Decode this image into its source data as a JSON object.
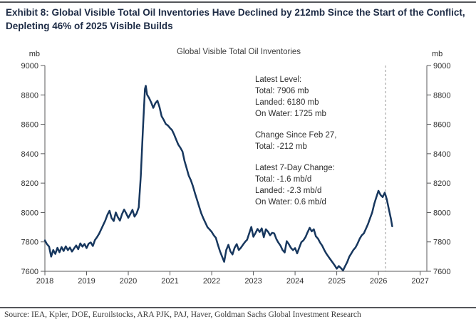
{
  "header": {
    "title": "Exhibit 8: Global Visible Total Oil Inventories Have Declined by 212mb Since the Start of the Conflict, Depleting 46% of 2025 Visible Builds"
  },
  "footer": {
    "source": "Source: IEA, Kpler, DOE, Euroilstocks, ARA PJK, PAJ, Haver, Goldman Sachs Global Investment Research"
  },
  "annotation": {
    "groups": [
      [
        "Latest Level:",
        "Total: 7906 mb",
        "Landed: 6180 mb",
        "On Water: 1725 mb"
      ],
      [
        "Change Since Feb 27,",
        "Total: -212 mb"
      ],
      [
        "Latest 7-Day Change:",
        "Total: -1.6 mb/d",
        "Landed: -2.3 mb/d",
        "On Water: 0.6 mb/d"
      ]
    ]
  },
  "chart_data": {
    "type": "line",
    "title": "Global Visible Total Oil Inventories",
    "unit_label": "mb",
    "xlabel": "",
    "ylabel": "mb",
    "xlim": [
      2018,
      2027.16
    ],
    "ylim": [
      7600,
      9000
    ],
    "x_ticks": [
      2018,
      2019,
      2020,
      2021,
      2022,
      2023,
      2024,
      2025,
      2026,
      2027
    ],
    "y_ticks": [
      7600,
      7800,
      8000,
      8200,
      8400,
      8600,
      8800,
      9000
    ],
    "grid": false,
    "legend": "none",
    "marker_line_x": 2026.17,
    "axis_color": "#58595b",
    "marker_line_color": "#a8a8a8",
    "series": [
      {
        "name": "Global Visible Total Oil Inventories",
        "color": "#17375e",
        "points": [
          [
            2018.0,
            7810
          ],
          [
            2018.05,
            7785
          ],
          [
            2018.1,
            7768
          ],
          [
            2018.15,
            7700
          ],
          [
            2018.2,
            7745
          ],
          [
            2018.25,
            7718
          ],
          [
            2018.3,
            7760
          ],
          [
            2018.35,
            7730
          ],
          [
            2018.4,
            7765
          ],
          [
            2018.45,
            7738
          ],
          [
            2018.5,
            7770
          ],
          [
            2018.55,
            7744
          ],
          [
            2018.6,
            7762
          ],
          [
            2018.65,
            7734
          ],
          [
            2018.7,
            7756
          ],
          [
            2018.75,
            7776
          ],
          [
            2018.8,
            7750
          ],
          [
            2018.85,
            7790
          ],
          [
            2018.9,
            7768
          ],
          [
            2018.95,
            7786
          ],
          [
            2019.0,
            7758
          ],
          [
            2019.05,
            7788
          ],
          [
            2019.1,
            7796
          ],
          [
            2019.15,
            7772
          ],
          [
            2019.2,
            7812
          ],
          [
            2019.25,
            7832
          ],
          [
            2019.3,
            7856
          ],
          [
            2019.35,
            7886
          ],
          [
            2019.4,
            7916
          ],
          [
            2019.45,
            7946
          ],
          [
            2019.5,
            7985
          ],
          [
            2019.55,
            8012
          ],
          [
            2019.6,
            7962
          ],
          [
            2019.65,
            7942
          ],
          [
            2019.7,
            8000
          ],
          [
            2019.75,
            7968
          ],
          [
            2019.8,
            7945
          ],
          [
            2019.85,
            7990
          ],
          [
            2019.9,
            8020
          ],
          [
            2019.95,
            7994
          ],
          [
            2020.0,
            7964
          ],
          [
            2020.05,
            7990
          ],
          [
            2020.1,
            8018
          ],
          [
            2020.15,
            7972
          ],
          [
            2020.2,
            7994
          ],
          [
            2020.25,
            8035
          ],
          [
            2020.3,
            8250
          ],
          [
            2020.35,
            8560
          ],
          [
            2020.4,
            8840
          ],
          [
            2020.42,
            8862
          ],
          [
            2020.45,
            8802
          ],
          [
            2020.5,
            8778
          ],
          [
            2020.55,
            8748
          ],
          [
            2020.6,
            8712
          ],
          [
            2020.65,
            8744
          ],
          [
            2020.7,
            8760
          ],
          [
            2020.75,
            8716
          ],
          [
            2020.8,
            8655
          ],
          [
            2020.85,
            8630
          ],
          [
            2020.9,
            8602
          ],
          [
            2020.95,
            8592
          ],
          [
            2021.0,
            8575
          ],
          [
            2021.05,
            8560
          ],
          [
            2021.1,
            8530
          ],
          [
            2021.15,
            8495
          ],
          [
            2021.2,
            8462
          ],
          [
            2021.25,
            8440
          ],
          [
            2021.3,
            8415
          ],
          [
            2021.35,
            8350
          ],
          [
            2021.4,
            8300
          ],
          [
            2021.45,
            8250
          ],
          [
            2021.5,
            8220
          ],
          [
            2021.55,
            8180
          ],
          [
            2021.6,
            8130
          ],
          [
            2021.65,
            8085
          ],
          [
            2021.7,
            8040
          ],
          [
            2021.75,
            7995
          ],
          [
            2021.8,
            7960
          ],
          [
            2021.85,
            7930
          ],
          [
            2021.9,
            7900
          ],
          [
            2021.95,
            7885
          ],
          [
            2022.0,
            7868
          ],
          [
            2022.05,
            7845
          ],
          [
            2022.1,
            7828
          ],
          [
            2022.15,
            7780
          ],
          [
            2022.2,
            7735
          ],
          [
            2022.25,
            7700
          ],
          [
            2022.3,
            7665
          ],
          [
            2022.35,
            7745
          ],
          [
            2022.4,
            7780
          ],
          [
            2022.45,
            7735
          ],
          [
            2022.5,
            7715
          ],
          [
            2022.55,
            7760
          ],
          [
            2022.6,
            7785
          ],
          [
            2022.65,
            7745
          ],
          [
            2022.7,
            7760
          ],
          [
            2022.75,
            7780
          ],
          [
            2022.8,
            7800
          ],
          [
            2022.85,
            7815
          ],
          [
            2022.9,
            7858
          ],
          [
            2022.95,
            7902
          ],
          [
            2023.0,
            7835
          ],
          [
            2023.05,
            7860
          ],
          [
            2023.1,
            7888
          ],
          [
            2023.15,
            7868
          ],
          [
            2023.2,
            7892
          ],
          [
            2023.25,
            7832
          ],
          [
            2023.3,
            7886
          ],
          [
            2023.35,
            7870
          ],
          [
            2023.4,
            7845
          ],
          [
            2023.45,
            7862
          ],
          [
            2023.5,
            7858
          ],
          [
            2023.55,
            7820
          ],
          [
            2023.6,
            7795
          ],
          [
            2023.65,
            7775
          ],
          [
            2023.7,
            7745
          ],
          [
            2023.75,
            7728
          ],
          [
            2023.8,
            7805
          ],
          [
            2023.85,
            7785
          ],
          [
            2023.9,
            7760
          ],
          [
            2023.95,
            7744
          ],
          [
            2024.0,
            7758
          ],
          [
            2024.05,
            7722
          ],
          [
            2024.1,
            7760
          ],
          [
            2024.15,
            7798
          ],
          [
            2024.2,
            7810
          ],
          [
            2024.25,
            7832
          ],
          [
            2024.3,
            7865
          ],
          [
            2024.35,
            7896
          ],
          [
            2024.4,
            7872
          ],
          [
            2024.45,
            7886
          ],
          [
            2024.5,
            7838
          ],
          [
            2024.55,
            7822
          ],
          [
            2024.6,
            7795
          ],
          [
            2024.65,
            7775
          ],
          [
            2024.7,
            7745
          ],
          [
            2024.75,
            7720
          ],
          [
            2024.8,
            7700
          ],
          [
            2024.85,
            7680
          ],
          [
            2024.9,
            7660
          ],
          [
            2024.95,
            7640
          ],
          [
            2025.0,
            7618
          ],
          [
            2025.05,
            7636
          ],
          [
            2025.1,
            7622
          ],
          [
            2025.15,
            7606
          ],
          [
            2025.2,
            7635
          ],
          [
            2025.25,
            7662
          ],
          [
            2025.3,
            7700
          ],
          [
            2025.35,
            7722
          ],
          [
            2025.4,
            7746
          ],
          [
            2025.45,
            7762
          ],
          [
            2025.5,
            7790
          ],
          [
            2025.55,
            7822
          ],
          [
            2025.6,
            7845
          ],
          [
            2025.65,
            7858
          ],
          [
            2025.7,
            7890
          ],
          [
            2025.75,
            7922
          ],
          [
            2025.8,
            7962
          ],
          [
            2025.85,
            8000
          ],
          [
            2025.9,
            8060
          ],
          [
            2025.95,
            8105
          ],
          [
            2026.0,
            8148
          ],
          [
            2026.05,
            8120
          ],
          [
            2026.1,
            8105
          ],
          [
            2026.15,
            8135
          ],
          [
            2026.17,
            8118
          ],
          [
            2026.2,
            8090
          ],
          [
            2026.25,
            8020
          ],
          [
            2026.3,
            7955
          ],
          [
            2026.33,
            7906
          ]
        ]
      }
    ]
  }
}
